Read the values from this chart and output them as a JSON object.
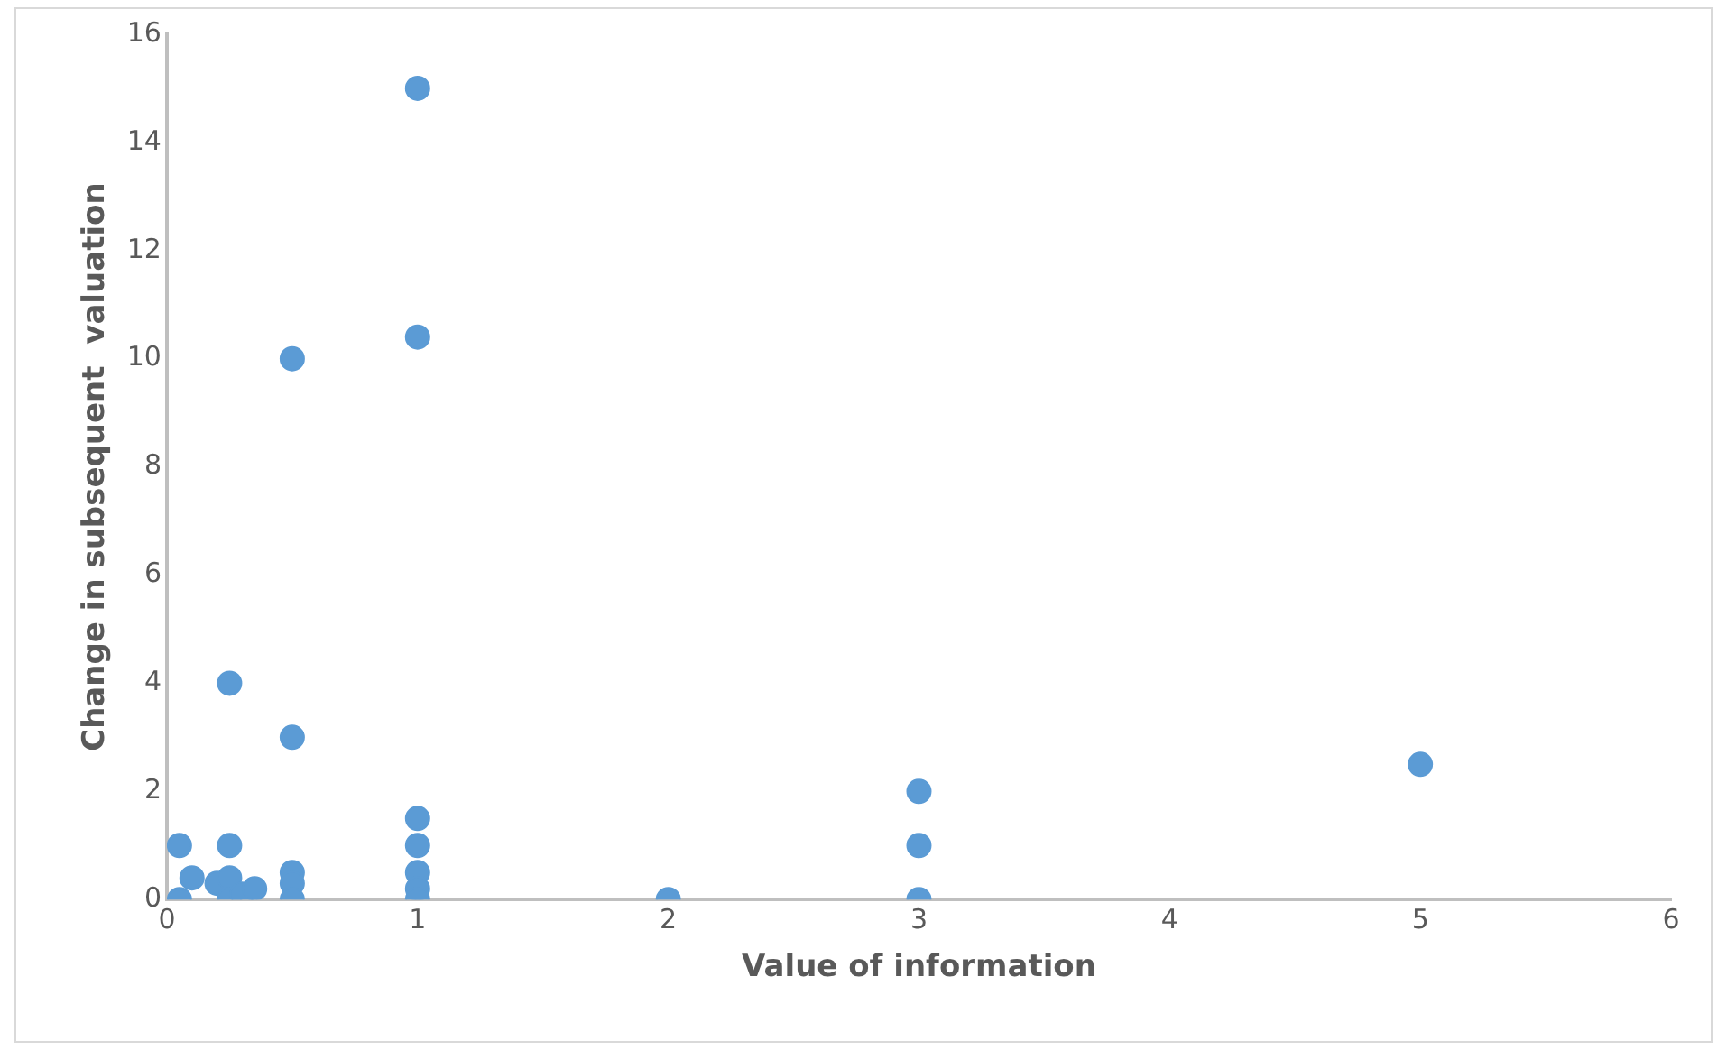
{
  "chart_data": {
    "type": "scatter",
    "xlabel": "Value of information",
    "ylabel": "Change in subsequent  valuation",
    "x": [
      1,
      1,
      0.5,
      0.25,
      0.5,
      1,
      1,
      1,
      1,
      1,
      0.5,
      0.5,
      0.5,
      2,
      3,
      3,
      3,
      5,
      0.05,
      0.25,
      0.05,
      0.1,
      0.2,
      0.25,
      0.25,
      0.3,
      0.35
    ],
    "series": [
      {
        "color": "#5b9bd5",
        "values": [
          15,
          10.4,
          10,
          4,
          3,
          1.5,
          1,
          0.5,
          0.2,
          0,
          0.5,
          0.3,
          0,
          0,
          2,
          1,
          0,
          2.5,
          1,
          1,
          0,
          0.4,
          0.3,
          0.4,
          0,
          0.1,
          0.2
        ]
      }
    ],
    "xlim": [
      0,
      6
    ],
    "xticks": [
      0,
      1,
      2,
      3,
      4,
      5,
      6
    ],
    "ylim": [
      0,
      16
    ],
    "yticks": [
      0,
      2,
      4,
      6,
      8,
      10,
      12,
      14,
      16
    ],
    "grid": false,
    "legend": false,
    "marker": "circle"
  }
}
